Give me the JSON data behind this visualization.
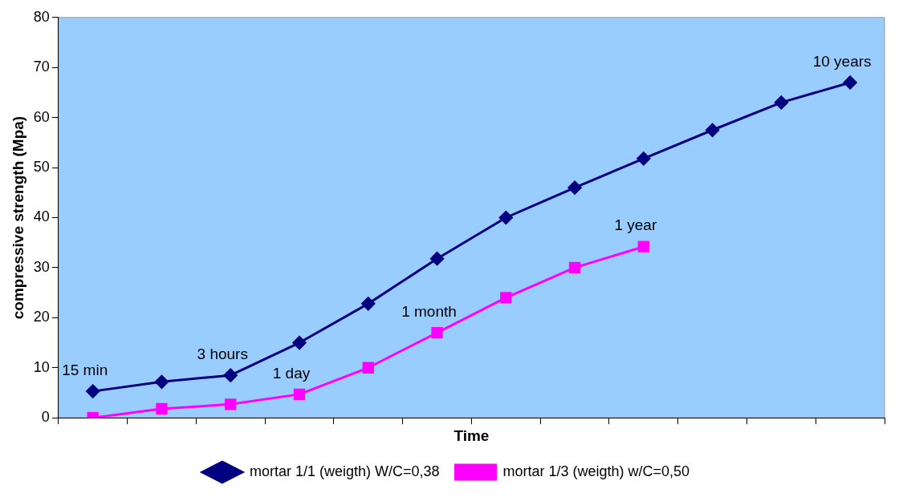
{
  "chart_data": {
    "type": "line",
    "xlabel": "Time",
    "ylabel": "compressive strength (Mpa)",
    "categories": [
      null,
      null,
      null,
      null,
      null,
      null,
      null,
      null,
      null,
      null,
      null,
      null
    ],
    "ylim": [
      0,
      80
    ],
    "yticks": [
      0,
      10,
      20,
      30,
      40,
      50,
      60,
      70,
      80
    ],
    "tick_labels": "y",
    "legend": "bottom",
    "series": [
      {
        "name": "mortar 1/1 (weigth) W/C=0,38",
        "color": "#000080",
        "marker": "diamond",
        "values": [
          5.3,
          7.2,
          8.5,
          15,
          22.8,
          31.8,
          40,
          46,
          51.8,
          57.5,
          63,
          67
        ]
      },
      {
        "name": "mortar 1/3 (weigth) w/C=0,50",
        "color": "#ff00ff",
        "marker": "square",
        "values": [
          0,
          1.8,
          2.7,
          4.7,
          10,
          17,
          24,
          30,
          34.2,
          null,
          null,
          null
        ]
      }
    ],
    "annotations": [
      {
        "text": "15 min",
        "y": 5.3
      },
      {
        "text": "3 hours",
        "y": 8.5
      },
      {
        "text": "1 day",
        "y": 4.7
      },
      {
        "text": "1 month",
        "y": 17
      },
      {
        "text": "1 year",
        "y": 34.2
      },
      {
        "text": "10 years",
        "y": 67
      }
    ]
  }
}
